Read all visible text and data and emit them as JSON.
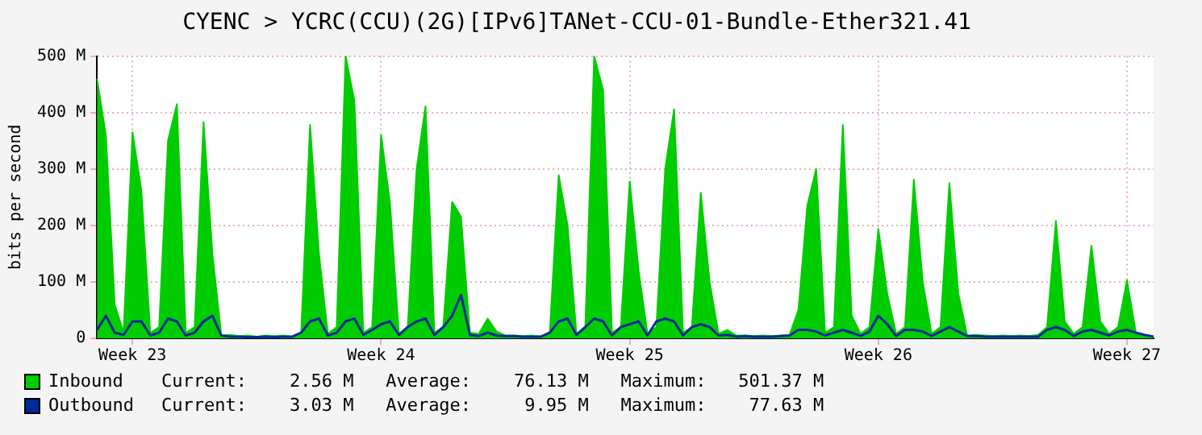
{
  "chart_data": {
    "type": "area",
    "title": "CYENC > YCRC(CCU)(2G)[IPv6]TANet-CCU-01-Bundle-Ether321.41",
    "ylabel": "bits per second",
    "categories": [
      null,
      null,
      null,
      null,
      "Week 23",
      null,
      null,
      null,
      null,
      null,
      null,
      null,
      null,
      null,
      null,
      null,
      null,
      null,
      null,
      null,
      null,
      null,
      null,
      null,
      null,
      null,
      null,
      null,
      null,
      null,
      null,
      null,
      "Week 24",
      null,
      null,
      null,
      null,
      null,
      null,
      null,
      null,
      null,
      null,
      null,
      null,
      null,
      null,
      null,
      null,
      null,
      null,
      null,
      null,
      null,
      null,
      null,
      null,
      null,
      null,
      null,
      "Week 25",
      null,
      null,
      null,
      null,
      null,
      null,
      null,
      null,
      null,
      null,
      null,
      null,
      null,
      null,
      null,
      null,
      null,
      null,
      null,
      null,
      null,
      null,
      null,
      null,
      null,
      null,
      null,
      "Week 26",
      null,
      null,
      null,
      null,
      null,
      null,
      null,
      null,
      null,
      null,
      null,
      null,
      null,
      null,
      null,
      null,
      null,
      null,
      null,
      null,
      null,
      null,
      null,
      null,
      null,
      null,
      null,
      "Week 27",
      null,
      null,
      null
    ],
    "series": [
      {
        "name": "Inbound",
        "type": "area",
        "color": "#00cc00",
        "values": [
          460,
          360,
          60,
          10,
          365,
          262,
          10,
          20,
          350,
          415,
          10,
          20,
          383,
          150,
          5,
          6,
          4,
          5,
          3,
          5,
          4,
          5,
          3,
          10,
          378,
          150,
          8,
          20,
          500,
          420,
          10,
          20,
          360,
          240,
          8,
          20,
          300,
          411,
          10,
          20,
          242,
          215,
          10,
          8,
          35,
          12,
          5,
          5,
          4,
          5,
          3,
          10,
          289,
          200,
          8,
          20,
          500,
          440,
          10,
          20,
          278,
          120,
          8,
          20,
          300,
          406,
          10,
          20,
          258,
          100,
          8,
          15,
          5,
          5,
          4,
          5,
          4,
          5,
          6,
          50,
          235,
          300,
          10,
          20,
          378,
          40,
          8,
          20,
          194,
          80,
          8,
          20,
          281,
          100,
          8,
          20,
          275,
          80,
          5,
          6,
          5,
          4,
          5,
          4,
          5,
          4,
          6,
          20,
          208,
          30,
          8,
          20,
          164,
          30,
          8,
          20,
          103,
          10,
          6,
          3
        ]
      },
      {
        "name": "Outbound",
        "type": "line",
        "color": "#002a97",
        "values": [
          15,
          40,
          10,
          6,
          30,
          30,
          5,
          10,
          35,
          30,
          5,
          10,
          30,
          40,
          5,
          3,
          3,
          2,
          2,
          3,
          2,
          3,
          3,
          10,
          30,
          35,
          5,
          10,
          30,
          35,
          6,
          15,
          25,
          30,
          6,
          20,
          30,
          35,
          6,
          20,
          40,
          77,
          6,
          4,
          10,
          5,
          4,
          4,
          3,
          3,
          3,
          10,
          30,
          35,
          6,
          20,
          35,
          30,
          5,
          20,
          25,
          30,
          5,
          30,
          35,
          30,
          5,
          20,
          25,
          20,
          5,
          6,
          3,
          4,
          3,
          3,
          3,
          4,
          5,
          15,
          15,
          12,
          5,
          10,
          15,
          10,
          4,
          12,
          40,
          25,
          4,
          15,
          15,
          12,
          4,
          12,
          20,
          12,
          4,
          4,
          3,
          3,
          3,
          3,
          3,
          3,
          3,
          15,
          20,
          15,
          4,
          12,
          15,
          10,
          5,
          12,
          15,
          10,
          6,
          3
        ]
      }
    ],
    "ylim": [
      0,
      500
    ],
    "yticks": [
      {
        "value": 0,
        "label": "0"
      },
      {
        "value": 100,
        "label": "100 M"
      },
      {
        "value": 200,
        "label": "200 M"
      },
      {
        "value": 300,
        "label": "300 M"
      },
      {
        "value": 400,
        "label": "400 M"
      },
      {
        "value": 500,
        "label": "500 M"
      }
    ],
    "grid": true,
    "legend": "bottom",
    "annotations": [
      "Current:    2.56 M   Average:    76.13 M   Maximum:   501.37 M",
      "Current:    3.03 M   Average:     9.95 M   Maximum:    77.63 M"
    ]
  }
}
